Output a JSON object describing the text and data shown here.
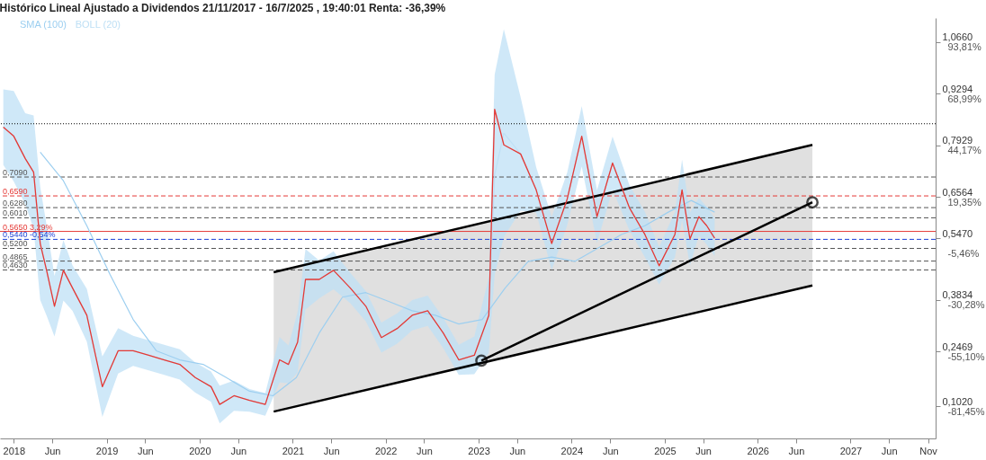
{
  "chart_data": {
    "type": "line",
    "title": "Histórico Lineal Ajustado a Dividendos 21/11/2017 - 16/7/2025 , 19:40:01 Renta: -36,39%",
    "xlim": [
      "2017-11-08",
      "2027-12-01"
    ],
    "xticks": [
      {
        "value": "2018-01-01",
        "label": "2018"
      },
      {
        "value": "2018-06-01",
        "label": "Jun"
      },
      {
        "value": "2019-01-01",
        "label": "2019"
      },
      {
        "value": "2019-06-01",
        "label": "Jun"
      },
      {
        "value": "2020-01-01",
        "label": "2020"
      },
      {
        "value": "2020-06-01",
        "label": "Jun"
      },
      {
        "value": "2021-01-01",
        "label": "2021"
      },
      {
        "value": "2021-06-01",
        "label": "Jun"
      },
      {
        "value": "2022-01-01",
        "label": "2022"
      },
      {
        "value": "2022-06-01",
        "label": "Jun"
      },
      {
        "value": "2023-01-01",
        "label": "2023"
      },
      {
        "value": "2023-06-01",
        "label": "Jun"
      },
      {
        "value": "2024-01-01",
        "label": "2024"
      },
      {
        "value": "2024-06-01",
        "label": "Jun"
      },
      {
        "value": "2025-01-01",
        "label": "2025"
      },
      {
        "value": "2025-06-01",
        "label": "Jun"
      },
      {
        "value": "2026-01-01",
        "label": "2026"
      },
      {
        "value": "2026-06-01",
        "label": "Jun"
      },
      {
        "value": "2027-01-01",
        "label": "2027"
      },
      {
        "value": "2027-06-01",
        "label": "Jun"
      },
      {
        "value": "2027-11-01",
        "label": "Nov"
      }
    ],
    "ylim": [
      0.017,
      1.13
    ],
    "yticks": [
      {
        "value": 1.066,
        "label": "1,0660"
      },
      {
        "value": 0.9294,
        "label": "0,9294"
      },
      {
        "value": 0.7929,
        "label": "0,7929"
      },
      {
        "value": 0.6564,
        "label": "0,6564"
      },
      {
        "value": 0.547,
        "label": "0,5470"
      },
      {
        "value": 0.3834,
        "label": "0,3834"
      },
      {
        "value": 0.2469,
        "label": "0,2469"
      },
      {
        "value": 0.102,
        "label": "0,1020"
      }
    ],
    "y2lim": [
      -96.91,
      105.45
    ],
    "y2ticks": [
      {
        "value": 93.81,
        "label": "93,81%"
      },
      {
        "value": 68.99,
        "label": "68,99%"
      },
      {
        "value": 44.17,
        "label": "44,17%"
      },
      {
        "value": 19.35,
        "label": "19,35%"
      },
      {
        "value": -5.46,
        "label": "-5,46%"
      },
      {
        "value": -30.28,
        "label": "-30,28%"
      },
      {
        "value": -55.1,
        "label": "-55,10%"
      },
      {
        "value": -81.45,
        "label": "-81,45%"
      }
    ],
    "grid": false,
    "legend": "top left",
    "x": [
      "2017-11-21",
      "2018-01-01",
      "2018-02-15",
      "2018-03-20",
      "2018-04-15",
      "2018-05-10",
      "2018-06-10",
      "2018-07-15",
      "2018-08-20",
      "2018-10-15",
      "2018-12-15",
      "2019-02-15",
      "2019-04-15",
      "2019-06-15",
      "2019-08-15",
      "2019-10-15",
      "2019-12-15",
      "2020-02-15",
      "2020-03-20",
      "2020-05-15",
      "2020-07-15",
      "2020-09-15",
      "2020-11-10",
      "2020-12-15",
      "2021-01-20",
      "2021-02-20",
      "2021-04-15",
      "2021-06-10",
      "2021-08-15",
      "2021-10-15",
      "2021-12-15",
      "2022-02-15",
      "2022-04-15",
      "2022-06-15",
      "2022-08-15",
      "2022-10-15",
      "2022-12-15",
      "2023-02-10",
      "2023-03-05",
      "2023-04-10",
      "2023-06-15",
      "2023-08-15",
      "2023-10-15",
      "2023-12-15",
      "2024-02-10",
      "2024-04-10",
      "2024-06-10",
      "2024-08-15",
      "2024-10-15",
      "2024-12-10",
      "2025-02-10",
      "2025-03-10",
      "2025-04-10",
      "2025-05-15",
      "2025-06-15",
      "2025-07-16"
    ],
    "series": [
      {
        "name": "BOLL (20)",
        "type": "line",
        "color": "#bfe0f5",
        "values": [
          0.841,
          0.817,
          0.758,
          0.722,
          0.533,
          0.462,
          0.367,
          0.462,
          0.415,
          0.343,
          0.154,
          0.249,
          0.249,
          0.237,
          0.225,
          0.213,
          0.178,
          0.154,
          0.107,
          0.13,
          0.118,
          0.107,
          0.225,
          0.213,
          0.272,
          0.438,
          0.438,
          0.462,
          0.415,
          0.367,
          0.284,
          0.308,
          0.343,
          0.355,
          0.296,
          0.225,
          0.237,
          0.343,
          0.715,
          0.825,
          0.77,
          0.675,
          0.533,
          0.651,
          0.817,
          0.604,
          0.746,
          0.628,
          0.557,
          0.474,
          0.557,
          0.675,
          0.545,
          0.604,
          0.58,
          0.55
        ],
        "lower": [
          0.741,
          0.697,
          0.638,
          0.572,
          0.383,
          0.342,
          0.287,
          0.382,
          0.355,
          0.273,
          0.074,
          0.189,
          0.209,
          0.197,
          0.185,
          0.173,
          0.138,
          0.114,
          0.057,
          0.09,
          0.088,
          0.077,
          0.165,
          0.163,
          0.192,
          0.358,
          0.388,
          0.412,
          0.375,
          0.327,
          0.244,
          0.268,
          0.303,
          0.315,
          0.256,
          0.185,
          0.187,
          0.243,
          0.45,
          0.55,
          0.62,
          0.615,
          0.463,
          0.581,
          0.737,
          0.534,
          0.676,
          0.568,
          0.497,
          0.424,
          0.497,
          0.595,
          0.475,
          0.554,
          0.53,
          0.5
        ],
        "upper": [
          0.941,
          0.937,
          0.878,
          0.872,
          0.683,
          0.582,
          0.447,
          0.542,
          0.475,
          0.413,
          0.234,
          0.309,
          0.289,
          0.277,
          0.265,
          0.253,
          0.218,
          0.194,
          0.157,
          0.17,
          0.148,
          0.137,
          0.285,
          0.263,
          0.352,
          0.518,
          0.488,
          0.512,
          0.455,
          0.407,
          0.324,
          0.348,
          0.383,
          0.395,
          0.336,
          0.265,
          0.287,
          0.443,
          0.98,
          1.1,
          0.92,
          0.735,
          0.603,
          0.721,
          0.897,
          0.674,
          0.816,
          0.688,
          0.617,
          0.524,
          0.617,
          0.755,
          0.615,
          0.654,
          0.63,
          0.6
        ]
      },
      {
        "type": "line",
        "color": "#000000",
        "x": [
          "2020-10-18",
          "2026-08-04"
        ],
        "values": [
          0.457,
          0.794
        ],
        "lower": [
          0.088,
          0.422
        ],
        "upper": [
          0.457,
          0.794
        ]
      },
      {
        "type": "line",
        "color": "#000000",
        "x": [
          "2020-10-18",
          "2026-08-04"
        ],
        "values": [
          0.088,
          0.422
        ]
      },
      {
        "name": "SMA (100)",
        "type": "line",
        "color": "#9dcff0",
        "x": [
          "2018-04-15",
          "2018-07-15",
          "2018-10-15",
          "2019-01-15",
          "2019-04-15",
          "2019-07-15",
          "2019-10-15",
          "2020-01-15",
          "2020-04-15",
          "2020-07-15",
          "2020-10-15",
          "2021-01-15",
          "2021-04-15",
          "2021-07-15",
          "2021-10-15",
          "2022-01-15",
          "2022-04-15",
          "2022-07-15",
          "2022-10-15",
          "2023-01-15",
          "2023-04-15",
          "2023-07-15",
          "2023-10-15",
          "2024-01-15",
          "2024-04-15",
          "2024-07-15",
          "2024-10-15",
          "2025-01-15",
          "2025-04-15",
          "2025-07-16"
        ],
        "values": [
          0.775,
          0.699,
          0.58,
          0.45,
          0.332,
          0.249,
          0.225,
          0.213,
          0.178,
          0.142,
          0.13,
          0.178,
          0.296,
          0.391,
          0.403,
          0.379,
          0.355,
          0.343,
          0.32,
          0.332,
          0.415,
          0.486,
          0.497,
          0.486,
          0.521,
          0.557,
          0.58,
          0.616,
          0.647,
          0.616
        ]
      },
      {
        "type": "line",
        "color": "#e53935",
        "values": [
          0.841,
          0.817,
          0.758,
          0.722,
          0.533,
          0.462,
          0.367,
          0.462,
          0.415,
          0.343,
          0.154,
          0.249,
          0.249,
          0.237,
          0.225,
          0.213,
          0.178,
          0.154,
          0.107,
          0.13,
          0.118,
          0.107,
          0.225,
          0.213,
          0.272,
          0.438,
          0.438,
          0.462,
          0.415,
          0.367,
          0.284,
          0.308,
          0.343,
          0.355,
          0.296,
          0.225,
          0.237,
          0.343,
          0.888,
          0.794,
          0.77,
          0.675,
          0.533,
          0.651,
          0.817,
          0.604,
          0.746,
          0.628,
          0.557,
          0.474,
          0.557,
          0.675,
          0.545,
          0.604,
          0.58,
          0.547
        ]
      },
      {
        "type": "line",
        "color": "#000000",
        "marker": "circle",
        "x": [
          "2023-01-12",
          "2026-08-04"
        ],
        "values": [
          0.223,
          0.642
        ]
      }
    ],
    "ref_lines": [
      {
        "axis": "y",
        "value": 0.85,
        "color": "#000000",
        "line_style": "dotted"
      },
      {
        "axis": "y",
        "value": 0.709,
        "label": "0,7090",
        "color": "#555555",
        "line_style": "dashed"
      },
      {
        "axis": "y",
        "value": 0.659,
        "label": "0,6590",
        "color": "#e53935",
        "line_style": "dashed"
      },
      {
        "axis": "y",
        "value": 0.628,
        "label": "0,6280",
        "color": "#555555",
        "line_style": "dashed"
      },
      {
        "axis": "y",
        "value": 0.601,
        "label": "0,6010",
        "color": "#555555",
        "line_style": "dashed"
      },
      {
        "axis": "y",
        "value": 0.565,
        "label": "0,5650 3,29%",
        "color": "#e53935",
        "line_style": "solid"
      },
      {
        "axis": "y",
        "value": 0.544,
        "label": "0,5440 -0,54%",
        "color": "#1a3fd6",
        "line_style": "dashed"
      },
      {
        "axis": "y",
        "value": 0.52,
        "label": "0,5200",
        "color": "#555555",
        "line_style": "dashed"
      },
      {
        "axis": "y",
        "value": 0.4865,
        "label": "0,4865",
        "color": "#555555",
        "line_style": "dashed"
      },
      {
        "axis": "y",
        "value": 0.463,
        "label": "0,4630",
        "color": "#555555",
        "line_style": "dashed"
      }
    ]
  }
}
